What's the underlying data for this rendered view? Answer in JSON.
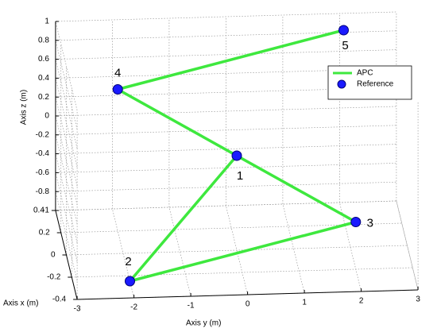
{
  "chart_data": {
    "type": "line3d",
    "xlabel": "Axis x (m)",
    "ylabel": "Axis y (m)",
    "zlabel": "Axis z (m)",
    "xlim": [
      -0.4,
      0.4
    ],
    "ylim": [
      -3,
      3
    ],
    "zlim": [
      -1,
      1
    ],
    "xticks": [
      -0.4,
      -0.2,
      0,
      0.2,
      0.4
    ],
    "yticks": [
      -3,
      -2,
      -1,
      0,
      1,
      2,
      3
    ],
    "zticks": [
      -1,
      -0.8,
      -0.6,
      -0.4,
      -0.2,
      0,
      0.2,
      0.4,
      0.6,
      0.8,
      1
    ],
    "grid": true,
    "legend": "northeast",
    "series": [
      {
        "name": "APC",
        "color": "#3ee83e",
        "x": [
          0,
          -0.25,
          -0.2,
          0.2,
          0.25
        ],
        "y": [
          0,
          -2,
          2,
          -2,
          2
        ],
        "z": [
          0,
          -1,
          -0.5,
          0.5,
          1
        ]
      },
      {
        "name": "Reference",
        "color": "#1a1aff",
        "x": [
          0,
          -0.25,
          -0.2,
          0.2,
          0.25
        ],
        "y": [
          0,
          -2,
          2,
          -2,
          2
        ],
        "z": [
          0,
          -1,
          -0.5,
          0.5,
          1
        ],
        "labels": [
          "1",
          "2",
          "3",
          "4",
          "5"
        ]
      }
    ]
  }
}
